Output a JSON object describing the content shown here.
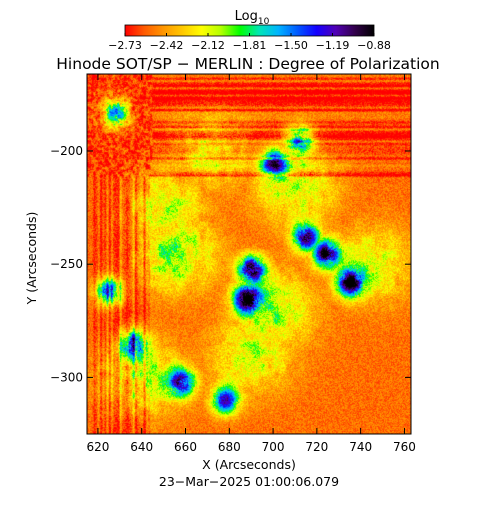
{
  "colorbar": {
    "label_main": "Log",
    "label_sub": "10",
    "tick_labels": [
      "−2.73",
      "−2.42",
      "−2.12",
      "−1.81",
      "−1.50",
      "−1.19",
      "−0.88"
    ],
    "colors": [
      "#ff0000",
      "#ff5a00",
      "#ff9600",
      "#ffc800",
      "#ffff00",
      "#b4ff00",
      "#00ff00",
      "#00e6b4",
      "#00b4ff",
      "#005aff",
      "#1400ff",
      "#5000b4",
      "#32004b",
      "#000000"
    ]
  },
  "chart_data": {
    "type": "heatmap",
    "title": "Hinode SOT/SP − MERLIN : Degree of Polarization",
    "xlabel": "X (Arcseconds)",
    "ylabel": "Y (Arcseconds)",
    "xlim": [
      615,
      763
    ],
    "ylim": [
      -325,
      -166
    ],
    "x_ticks": [
      620,
      640,
      660,
      680,
      700,
      720,
      740,
      760
    ],
    "x_tick_labels": [
      "620",
      "640",
      "660",
      "680",
      "700",
      "720",
      "740",
      "760"
    ],
    "y_ticks": [
      -300,
      -250,
      -200
    ],
    "y_tick_labels": [
      "−300",
      "−250",
      "−200"
    ],
    "value_range_log10": [
      -2.73,
      -0.88
    ],
    "background_level": -2.65,
    "strong_regions": [
      {
        "x": 690,
        "y": -252,
        "peak": -0.95
      },
      {
        "x": 688,
        "y": -265,
        "peak": -1.0
      },
      {
        "x": 724,
        "y": -245,
        "peak": -0.95
      },
      {
        "x": 715,
        "y": -238,
        "peak": -1.05
      },
      {
        "x": 735,
        "y": -258,
        "peak": -1.05
      },
      {
        "x": 636,
        "y": -285,
        "peak": -1.15
      },
      {
        "x": 625,
        "y": -262,
        "peak": -1.25
      },
      {
        "x": 658,
        "y": -302,
        "peak": -1.25
      },
      {
        "x": 678,
        "y": -310,
        "peak": -1.3
      },
      {
        "x": 700,
        "y": -205,
        "peak": -1.35
      },
      {
        "x": 712,
        "y": -195,
        "peak": -1.4
      },
      {
        "x": 628,
        "y": -183,
        "peak": -1.45
      }
    ],
    "network_bands": [
      {
        "x": 655,
        "y": -245,
        "level": -1.7
      },
      {
        "x": 700,
        "y": -270,
        "level": -1.8
      },
      {
        "x": 650,
        "y": -225,
        "level": -1.9
      },
      {
        "x": 710,
        "y": -215,
        "level": -1.85
      },
      {
        "x": 745,
        "y": -250,
        "level": -1.95
      },
      {
        "x": 640,
        "y": -300,
        "level": -1.8
      },
      {
        "x": 690,
        "y": -290,
        "level": -1.9
      },
      {
        "x": 672,
        "y": -200,
        "level": -2.0
      }
    ],
    "date_label": "23−Mar−2025 01:00:06.079"
  }
}
